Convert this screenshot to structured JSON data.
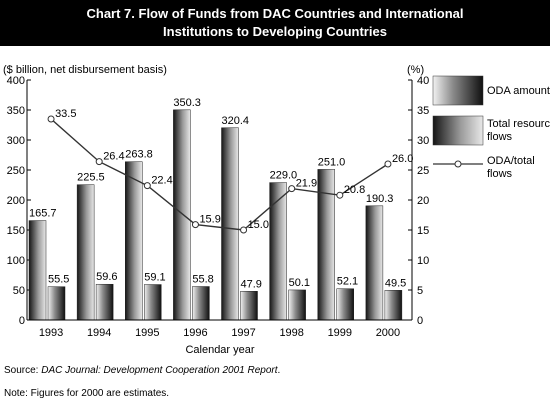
{
  "chart_data": {
    "type": "bar",
    "title_line1": "Chart 7. Flow of Funds from DAC Countries and International",
    "title_line2": "Institutions to Developing Countries",
    "ylabel_left": "($ billion, net disbursement basis)",
    "ylabel_right": "(%)",
    "xlabel": "Calendar year",
    "categories": [
      "1993",
      "1994",
      "1995",
      "1996",
      "1997",
      "1998",
      "1999",
      "2000"
    ],
    "ylim_left": [
      0,
      400
    ],
    "yticks_left": [
      "0",
      "50",
      "100",
      "150",
      "200",
      "250",
      "300",
      "350",
      "400"
    ],
    "ylim_right": [
      0,
      40
    ],
    "yticks_right": [
      "0",
      "5",
      "10",
      "15",
      "20",
      "25",
      "30",
      "35",
      "40"
    ],
    "series": [
      {
        "name": "Total resource flows",
        "kind": "bar",
        "axis": "left",
        "values": [
          165.7,
          225.5,
          263.8,
          350.3,
          320.4,
          229.0,
          251.0,
          190.3
        ],
        "labels": [
          "165.7",
          "225.5",
          "263.8",
          "350.3",
          "320.4",
          "229.0",
          "251.0",
          "190.3"
        ]
      },
      {
        "name": "ODA amount",
        "kind": "bar",
        "axis": "left",
        "values": [
          55.5,
          59.6,
          59.1,
          55.8,
          47.9,
          50.1,
          52.1,
          49.5
        ],
        "labels": [
          "55.5",
          "59.6",
          "59.1",
          "55.8",
          "47.9",
          "50.1",
          "52.1",
          "49.5"
        ]
      },
      {
        "name": "ODA/total flows",
        "kind": "line",
        "axis": "right",
        "values": [
          33.5,
          26.4,
          22.4,
          15.9,
          15.0,
          21.9,
          20.8,
          26.0
        ],
        "labels": [
          "33.5",
          "26.4",
          "22.4",
          "15.9",
          "15.0",
          "21.9",
          "20.8",
          "26.0"
        ]
      }
    ],
    "legend": {
      "placement": "right",
      "oda_amount": "ODA amount",
      "total_line1": "Total resource",
      "total_line2": "flows",
      "ratio_line1": "ODA/total",
      "ratio_line2": "flows"
    },
    "grid": false
  },
  "footer": {
    "source_prefix": "Source: ",
    "source_italic": "DAC Journal: Development Cooperation 2001 Report",
    "source_suffix": ".",
    "note": "Note: Figures for 2000 are estimates."
  }
}
